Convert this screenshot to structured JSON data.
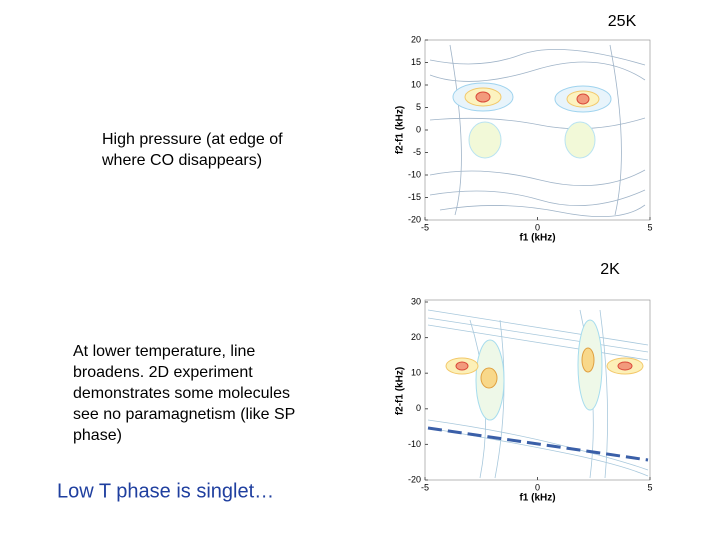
{
  "slide": {
    "notes": [
      {
        "lines": [
          "High pressure (at edge of",
          "where CO disappears)"
        ]
      },
      {
        "lines": [
          "At lower temperature, line",
          "broadens. 2D experiment",
          "demonstrates some molecules",
          "see no paramagnetism  (like SP",
          "phase)"
        ]
      }
    ],
    "conclusion": "Low T phase is singlet…",
    "figures": [
      {
        "label": "25K",
        "xlabel": "f1 (kHz)",
        "ylabel": "f2-f1 (kHz)",
        "xticks": [
          -5,
          0,
          5
        ],
        "yticks": [
          20,
          15,
          10,
          5,
          0,
          -5,
          -10,
          -15,
          -20
        ]
      },
      {
        "label": "2K",
        "xlabel": "f1 (kHz)",
        "ylabel": "f2-f1 (kHz)",
        "xticks": [
          -5,
          0,
          5
        ],
        "yticks": [
          30,
          20,
          10,
          0,
          -10,
          -20
        ]
      }
    ]
  }
}
